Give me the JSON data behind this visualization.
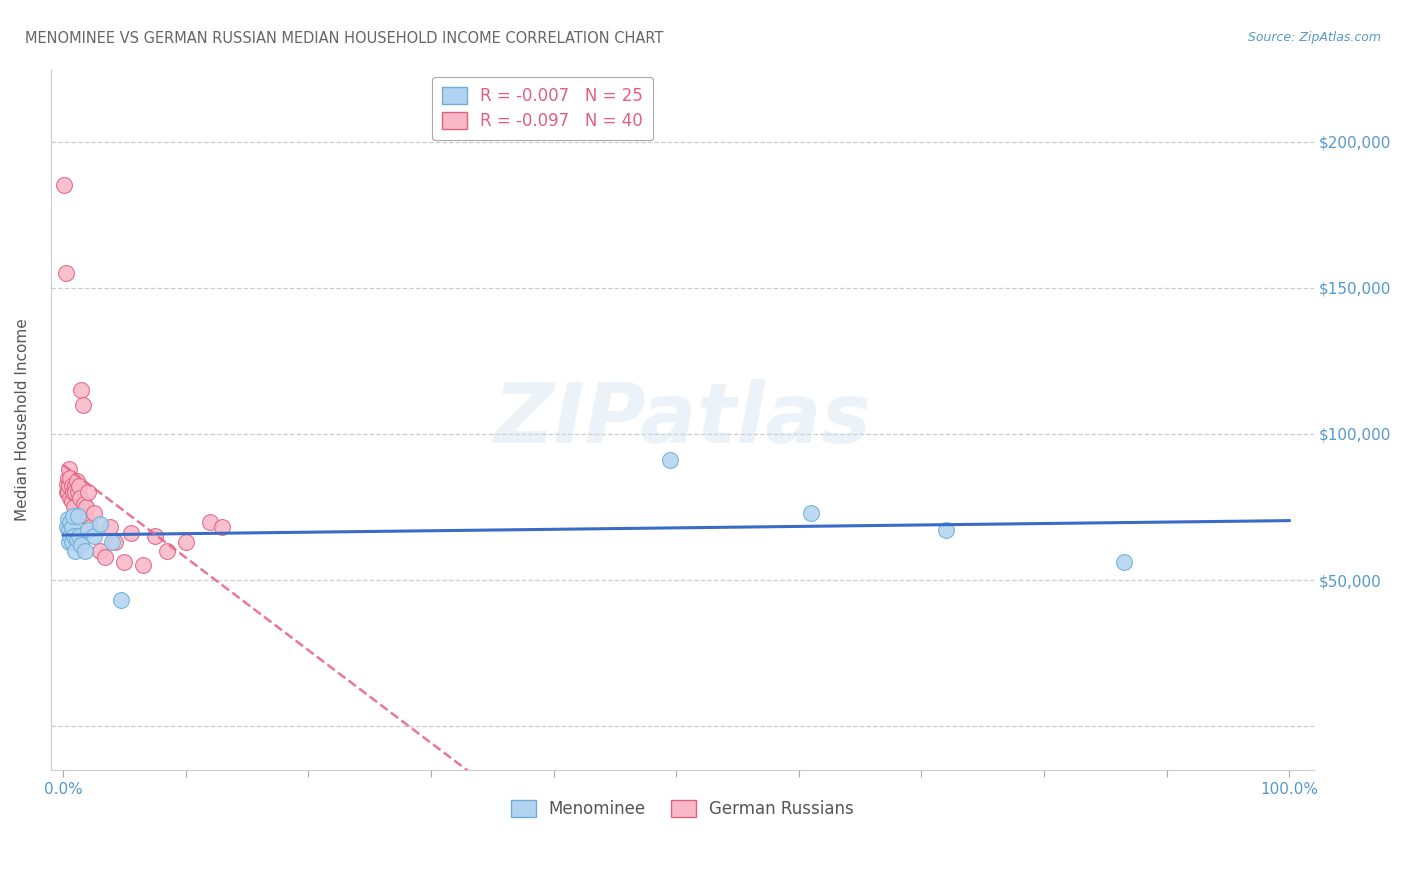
{
  "title": "MENOMINEE VS GERMAN RUSSIAN MEDIAN HOUSEHOLD INCOME CORRELATION CHART",
  "source": "Source: ZipAtlas.com",
  "ylabel": "Median Household Income",
  "watermark_text": "ZIPatlas",
  "xlim": [
    -0.01,
    1.02
  ],
  "ylim": [
    -15000,
    225000
  ],
  "yticks": [
    0,
    50000,
    100000,
    150000,
    200000
  ],
  "ytick_labels": [
    "",
    "$50,000",
    "$100,000",
    "$150,000",
    "$200,000"
  ],
  "xticks": [
    0.0,
    0.1,
    0.2,
    0.3,
    0.4,
    0.5,
    0.6,
    0.7,
    0.8,
    0.9,
    1.0
  ],
  "xtick_labels": [
    "0.0%",
    "",
    "",
    "",
    "",
    "",
    "",
    "",
    "",
    "",
    "100.0%"
  ],
  "menominee_color_face": "#b3d4f0",
  "menominee_color_edge": "#6baed6",
  "german_color_face": "#f9b8c8",
  "german_color_edge": "#e06080",
  "trend_men_color": "#3a6bc8",
  "trend_gr_color": "#e86080",
  "grid_color": "#cccccc",
  "bg_color": "#ffffff",
  "title_color": "#666666",
  "axis_label_color": "#5599cc",
  "legend_label_color": "#e06080",
  "bottom_label_color": "#555555",
  "menominee_x": [
    0.003,
    0.004,
    0.005,
    0.005,
    0.006,
    0.006,
    0.007,
    0.007,
    0.008,
    0.009,
    0.01,
    0.011,
    0.012,
    0.013,
    0.015,
    0.018,
    0.02,
    0.025,
    0.03,
    0.04,
    0.047,
    0.495,
    0.61,
    0.72,
    0.865
  ],
  "menominee_y": [
    68000,
    71000,
    67000,
    63000,
    70000,
    65000,
    68000,
    63000,
    72000,
    65000,
    60000,
    64000,
    72000,
    65000,
    62000,
    60000,
    67000,
    65000,
    69000,
    63000,
    43000,
    91000,
    73000,
    67000,
    56000
  ],
  "german_russian_x": [
    0.001,
    0.002,
    0.003,
    0.003,
    0.004,
    0.004,
    0.005,
    0.005,
    0.006,
    0.006,
    0.007,
    0.007,
    0.008,
    0.009,
    0.01,
    0.01,
    0.011,
    0.012,
    0.013,
    0.014,
    0.015,
    0.016,
    0.017,
    0.018,
    0.019,
    0.02,
    0.022,
    0.025,
    0.03,
    0.034,
    0.038,
    0.042,
    0.05,
    0.055,
    0.065,
    0.075,
    0.085,
    0.1,
    0.12,
    0.13
  ],
  "german_russian_y": [
    185000,
    155000,
    80000,
    83000,
    85000,
    80000,
    88000,
    82000,
    85000,
    78000,
    82000,
    77000,
    80000,
    75000,
    82000,
    80000,
    84000,
    80000,
    82000,
    78000,
    115000,
    110000,
    76000,
    72000,
    75000,
    80000,
    68000,
    73000,
    60000,
    58000,
    68000,
    63000,
    56000,
    66000,
    55000,
    65000,
    60000,
    63000,
    70000,
    68000
  ],
  "legend_r_men": "R = -0.007",
  "legend_n_men": "N = 25",
  "legend_r_gr": "R = -0.097",
  "legend_n_gr": "N = 40",
  "legend_label_men": "Menominee",
  "legend_label_gr": "German Russians"
}
